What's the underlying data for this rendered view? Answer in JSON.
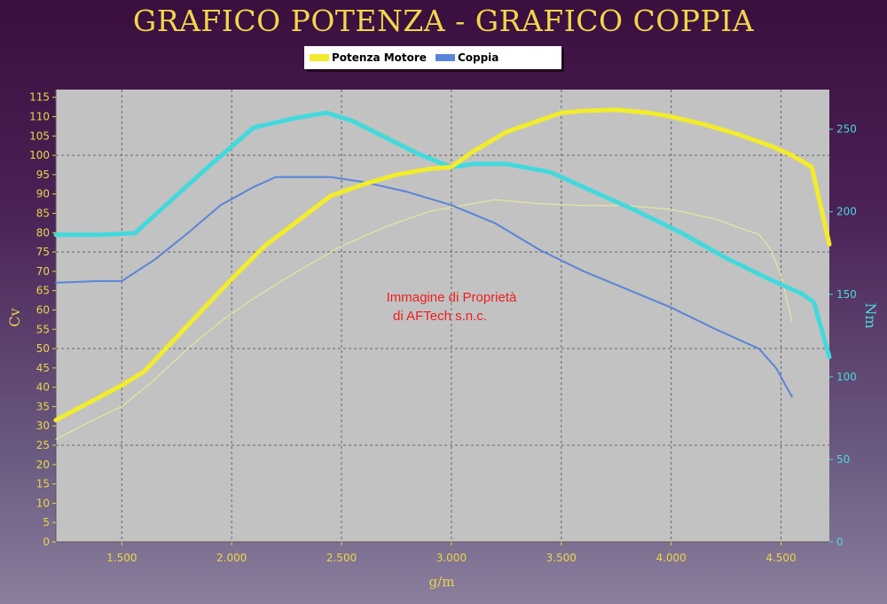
{
  "chart_data": {
    "type": "line",
    "title": "GRAFICO POTENZA - GRAFICO COPPIA",
    "xlabel": "g/m",
    "ylabel": "Cv",
    "y2label": "Nm",
    "xlim": [
      1200,
      4720
    ],
    "ylim": [
      0,
      117
    ],
    "y2lim": [
      0,
      274
    ],
    "x_ticks": [
      1500,
      2000,
      2500,
      3000,
      3500,
      4000,
      4500
    ],
    "x_tick_labels": [
      "1.500",
      "2.000",
      "2.500",
      "3.000",
      "3.500",
      "4.000",
      "4.500"
    ],
    "y_ticks": [
      0,
      5,
      10,
      15,
      20,
      25,
      30,
      35,
      40,
      45,
      50,
      55,
      60,
      65,
      70,
      75,
      80,
      85,
      90,
      95,
      100,
      105,
      110,
      115
    ],
    "y2_ticks": [
      0,
      50,
      100,
      150,
      200,
      250
    ],
    "grid": true,
    "legend_position": "top",
    "series": [
      {
        "name": "Potenza Motore",
        "axis": "left",
        "color": "#f2ec2c",
        "width": 5,
        "x": [
          1200,
          1350,
          1500,
          1600,
          1750,
          1900,
          2000,
          2150,
          2300,
          2450,
          2600,
          2750,
          2900,
          3000,
          3100,
          3250,
          3400,
          3500,
          3600,
          3750,
          3900,
          4000,
          4150,
          4300,
          4450,
          4550,
          4640,
          4720
        ],
        "y": [
          31.5,
          36,
          40.5,
          44,
          53,
          62,
          68,
          76.5,
          83,
          89.5,
          92.5,
          95,
          96.5,
          97,
          101,
          106,
          109,
          111,
          111.5,
          111.8,
          111,
          110,
          108,
          105.5,
          102.5,
          100,
          97,
          77
        ]
      },
      {
        "name": "Coppia",
        "axis": "right",
        "color": "#43d9dc",
        "width": 5,
        "x": [
          1200,
          1400,
          1560,
          1700,
          1900,
          2100,
          2300,
          2430,
          2550,
          2700,
          2850,
          3000,
          3100,
          3250,
          3450,
          3650,
          3850,
          4050,
          4250,
          4450,
          4600,
          4650,
          4720
        ],
        "y": [
          186,
          186,
          187,
          204,
          228,
          251,
          257,
          260,
          255,
          245,
          235,
          227,
          229,
          229,
          224,
          212,
          200,
          187,
          172,
          159,
          150,
          145,
          112
        ]
      },
      {
        "axis": "right",
        "color": "#5a84d8",
        "width": 2,
        "x": [
          1200,
          1400,
          1500,
          1650,
          1800,
          1950,
          2100,
          2200,
          2300,
          2450,
          2600,
          2800,
          3000,
          3200,
          3400,
          3600,
          3800,
          4000,
          4200,
          4400,
          4480,
          4520,
          4550
        ],
        "y": [
          157,
          158,
          158,
          171,
          187,
          204,
          215,
          221,
          221,
          221,
          218,
          212,
          204,
          193,
          177,
          164,
          153,
          142,
          129,
          117,
          105,
          95,
          88
        ]
      },
      {
        "axis": "left",
        "color": "#ecec9a",
        "width": 1,
        "x": [
          1200,
          1350,
          1500,
          1650,
          1800,
          1950,
          2100,
          2300,
          2500,
          2700,
          2900,
          3000,
          3200,
          3400,
          3600,
          3800,
          4000,
          4200,
          4400,
          4450,
          4500,
          4550
        ],
        "y": [
          26.5,
          31,
          35,
          42,
          50,
          57,
          63,
          70,
          76.5,
          81.5,
          85.5,
          86.5,
          88.5,
          87.5,
          87,
          87,
          86,
          83.5,
          79.5,
          76,
          69,
          57
        ]
      }
    ]
  },
  "watermark": {
    "line1": "Immagine di Proprietà",
    "line2": "di AFTech s.n.c."
  },
  "colors": {
    "plot_background": "#c2c2c2",
    "grid": "#666666",
    "left_axis_text": "#e9d64a",
    "right_axis_text": "#49d7de",
    "watermark": "#ee1e1e"
  }
}
